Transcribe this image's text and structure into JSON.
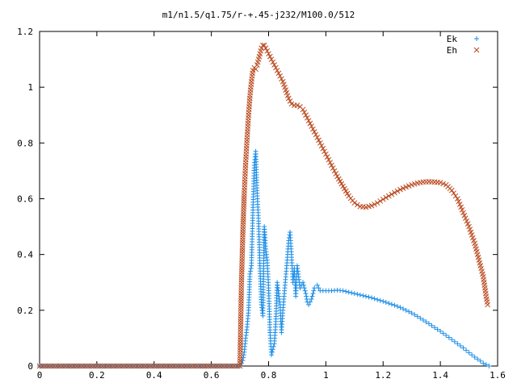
{
  "chart_data": {
    "type": "scatter",
    "title": "m1/n1.5/q1.75/r-+.45-j232/M100.0/512",
    "xlabel": "",
    "ylabel": "",
    "xlim": [
      0,
      1.6
    ],
    "ylim": [
      0,
      1.2
    ],
    "x_ticks": [
      "0",
      "0.2",
      "0.4",
      "0.6",
      "0.8",
      "1",
      "1.2",
      "1.4",
      "1.6"
    ],
    "y_ticks": [
      "0",
      "0.2",
      "0.4",
      "0.6",
      "0.8",
      "1",
      "1.2"
    ],
    "grid": false,
    "legend_position": "top-right",
    "series": [
      {
        "name": "Ek",
        "marker": "+",
        "color": "#1f8fe6",
        "points": [
          [
            0.0,
            0
          ],
          [
            0.05,
            0
          ],
          [
            0.1,
            0
          ],
          [
            0.15,
            0
          ],
          [
            0.2,
            0
          ],
          [
            0.25,
            0
          ],
          [
            0.3,
            0
          ],
          [
            0.35,
            0
          ],
          [
            0.4,
            0
          ],
          [
            0.45,
            0
          ],
          [
            0.5,
            0
          ],
          [
            0.55,
            0
          ],
          [
            0.6,
            0
          ],
          [
            0.65,
            0
          ],
          [
            0.7,
            0
          ],
          [
            0.71,
            0.02
          ],
          [
            0.715,
            0.05
          ],
          [
            0.72,
            0.1
          ],
          [
            0.725,
            0.14
          ],
          [
            0.73,
            0.2
          ],
          [
            0.735,
            0.33
          ],
          [
            0.74,
            0.36
          ],
          [
            0.745,
            0.55
          ],
          [
            0.75,
            0.72
          ],
          [
            0.755,
            0.77
          ],
          [
            0.76,
            0.62
          ],
          [
            0.765,
            0.52
          ],
          [
            0.77,
            0.35
          ],
          [
            0.775,
            0.22
          ],
          [
            0.78,
            0.18
          ],
          [
            0.785,
            0.5
          ],
          [
            0.79,
            0.42
          ],
          [
            0.795,
            0.38
          ],
          [
            0.8,
            0.28
          ],
          [
            0.805,
            0.12
          ],
          [
            0.81,
            0.04
          ],
          [
            0.82,
            0.08
          ],
          [
            0.825,
            0.15
          ],
          [
            0.83,
            0.3
          ],
          [
            0.84,
            0.22
          ],
          [
            0.845,
            0.12
          ],
          [
            0.85,
            0.2
          ],
          [
            0.855,
            0.26
          ],
          [
            0.86,
            0.32
          ],
          [
            0.865,
            0.38
          ],
          [
            0.87,
            0.45
          ],
          [
            0.875,
            0.48
          ],
          [
            0.88,
            0.4
          ],
          [
            0.885,
            0.3
          ],
          [
            0.89,
            0.35
          ],
          [
            0.895,
            0.25
          ],
          [
            0.9,
            0.36
          ],
          [
            0.905,
            0.32
          ],
          [
            0.91,
            0.28
          ],
          [
            0.92,
            0.3
          ],
          [
            0.93,
            0.26
          ],
          [
            0.935,
            0.23
          ],
          [
            0.94,
            0.22
          ],
          [
            0.95,
            0.24
          ],
          [
            0.96,
            0.28
          ],
          [
            0.97,
            0.29
          ],
          [
            0.98,
            0.27
          ],
          [
            1.0,
            0.27
          ],
          [
            1.02,
            0.27
          ],
          [
            1.04,
            0.272
          ],
          [
            1.06,
            0.27
          ],
          [
            1.08,
            0.265
          ],
          [
            1.1,
            0.26
          ],
          [
            1.12,
            0.255
          ],
          [
            1.14,
            0.25
          ],
          [
            1.16,
            0.245
          ],
          [
            1.18,
            0.238
          ],
          [
            1.2,
            0.232
          ],
          [
            1.22,
            0.225
          ],
          [
            1.24,
            0.218
          ],
          [
            1.26,
            0.21
          ],
          [
            1.28,
            0.2
          ],
          [
            1.3,
            0.19
          ],
          [
            1.32,
            0.178
          ],
          [
            1.34,
            0.165
          ],
          [
            1.36,
            0.152
          ],
          [
            1.38,
            0.138
          ],
          [
            1.4,
            0.125
          ],
          [
            1.42,
            0.11
          ],
          [
            1.44,
            0.095
          ],
          [
            1.46,
            0.08
          ],
          [
            1.48,
            0.065
          ],
          [
            1.5,
            0.048
          ],
          [
            1.52,
            0.032
          ],
          [
            1.54,
            0.018
          ],
          [
            1.55,
            0.01
          ],
          [
            1.56,
            0.005
          ],
          [
            1.57,
            0.0
          ]
        ]
      },
      {
        "name": "Eh",
        "marker": "x",
        "color": "#b8461a",
        "points": [
          [
            0.0,
            0
          ],
          [
            0.05,
            0
          ],
          [
            0.1,
            0
          ],
          [
            0.15,
            0
          ],
          [
            0.2,
            0
          ],
          [
            0.25,
            0
          ],
          [
            0.3,
            0
          ],
          [
            0.35,
            0
          ],
          [
            0.4,
            0
          ],
          [
            0.45,
            0
          ],
          [
            0.5,
            0
          ],
          [
            0.55,
            0
          ],
          [
            0.6,
            0
          ],
          [
            0.65,
            0
          ],
          [
            0.7,
            0
          ],
          [
            0.705,
            0.29
          ],
          [
            0.71,
            0.48
          ],
          [
            0.715,
            0.62
          ],
          [
            0.72,
            0.73
          ],
          [
            0.725,
            0.82
          ],
          [
            0.73,
            0.9
          ],
          [
            0.735,
            0.97
          ],
          [
            0.74,
            1.02
          ],
          [
            0.745,
            1.06
          ],
          [
            0.75,
            1.07
          ],
          [
            0.755,
            1.065
          ],
          [
            0.76,
            1.08
          ],
          [
            0.765,
            1.1
          ],
          [
            0.77,
            1.12
          ],
          [
            0.775,
            1.14
          ],
          [
            0.78,
            1.15
          ],
          [
            0.785,
            1.15
          ],
          [
            0.79,
            1.14
          ],
          [
            0.8,
            1.12
          ],
          [
            0.81,
            1.1
          ],
          [
            0.82,
            1.08
          ],
          [
            0.83,
            1.06
          ],
          [
            0.84,
            1.04
          ],
          [
            0.85,
            1.02
          ],
          [
            0.86,
            0.99
          ],
          [
            0.87,
            0.96
          ],
          [
            0.88,
            0.94
          ],
          [
            0.89,
            0.935
          ],
          [
            0.9,
            0.935
          ],
          [
            0.91,
            0.93
          ],
          [
            0.92,
            0.92
          ],
          [
            0.93,
            0.9
          ],
          [
            0.94,
            0.88
          ],
          [
            0.95,
            0.86
          ],
          [
            0.96,
            0.84
          ],
          [
            0.97,
            0.82
          ],
          [
            0.98,
            0.8
          ],
          [
            0.99,
            0.78
          ],
          [
            1.0,
            0.76
          ],
          [
            1.02,
            0.72
          ],
          [
            1.04,
            0.68
          ],
          [
            1.06,
            0.645
          ],
          [
            1.08,
            0.61
          ],
          [
            1.1,
            0.585
          ],
          [
            1.12,
            0.572
          ],
          [
            1.14,
            0.57
          ],
          [
            1.16,
            0.575
          ],
          [
            1.18,
            0.585
          ],
          [
            1.2,
            0.598
          ],
          [
            1.22,
            0.61
          ],
          [
            1.24,
            0.622
          ],
          [
            1.26,
            0.633
          ],
          [
            1.28,
            0.642
          ],
          [
            1.3,
            0.65
          ],
          [
            1.32,
            0.656
          ],
          [
            1.34,
            0.66
          ],
          [
            1.36,
            0.661
          ],
          [
            1.38,
            0.66
          ],
          [
            1.4,
            0.658
          ],
          [
            1.42,
            0.65
          ],
          [
            1.44,
            0.63
          ],
          [
            1.46,
            0.6
          ],
          [
            1.48,
            0.55
          ],
          [
            1.5,
            0.5
          ],
          [
            1.52,
            0.44
          ],
          [
            1.53,
            0.4
          ],
          [
            1.54,
            0.36
          ],
          [
            1.55,
            0.32
          ],
          [
            1.56,
            0.25
          ],
          [
            1.565,
            0.22
          ]
        ]
      }
    ]
  }
}
